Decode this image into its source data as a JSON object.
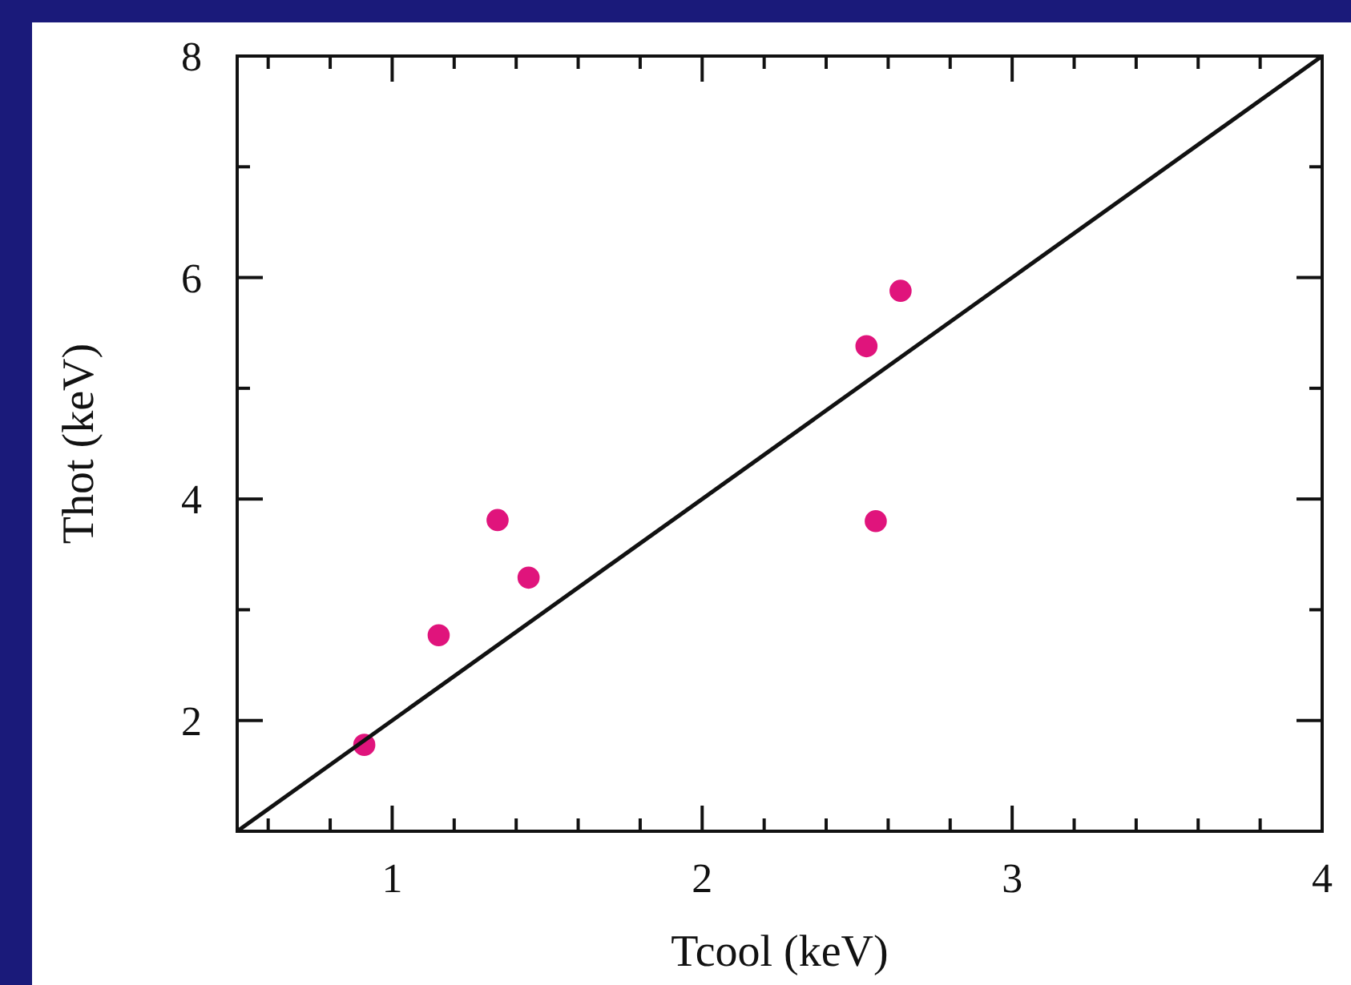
{
  "chart_data": {
    "type": "scatter",
    "xlabel": "Tcool (keV)",
    "ylabel": "Thot (keV)",
    "xlim": [
      0.5,
      4
    ],
    "ylim": [
      1,
      8
    ],
    "xticks": [
      {
        "value": 0.6,
        "label": null
      },
      {
        "value": 0.8,
        "label": null
      },
      1,
      {
        "value": 1.2,
        "label": null
      },
      {
        "value": 1.4,
        "label": null
      },
      {
        "value": 1.6,
        "label": null
      },
      {
        "value": 1.8,
        "label": null
      },
      2,
      {
        "value": 2.2,
        "label": null
      },
      {
        "value": 2.4,
        "label": null
      },
      {
        "value": 2.6,
        "label": null
      },
      {
        "value": 2.8,
        "label": null
      },
      3,
      {
        "value": 3.2,
        "label": null
      },
      {
        "value": 3.4,
        "label": null
      },
      {
        "value": 3.6,
        "label": null
      },
      {
        "value": 3.8,
        "label": null
      },
      4
    ],
    "yticks": [
      2,
      {
        "value": 3,
        "label": null
      },
      4,
      {
        "value": 5,
        "label": null
      },
      6,
      {
        "value": 7,
        "label": null
      },
      8
    ],
    "grid": false,
    "series": [
      {
        "marker": "circle",
        "color": "#e0147c",
        "x": [
          0.91,
          1.15,
          1.34,
          1.44,
          2.53,
          2.56,
          2.64
        ],
        "values": [
          1.78,
          2.77,
          3.81,
          3.29,
          5.38,
          3.8,
          5.88
        ]
      },
      {
        "type": "line",
        "color": "#111111",
        "x": [
          0.5,
          4
        ],
        "values": [
          1,
          8
        ]
      }
    ]
  }
}
